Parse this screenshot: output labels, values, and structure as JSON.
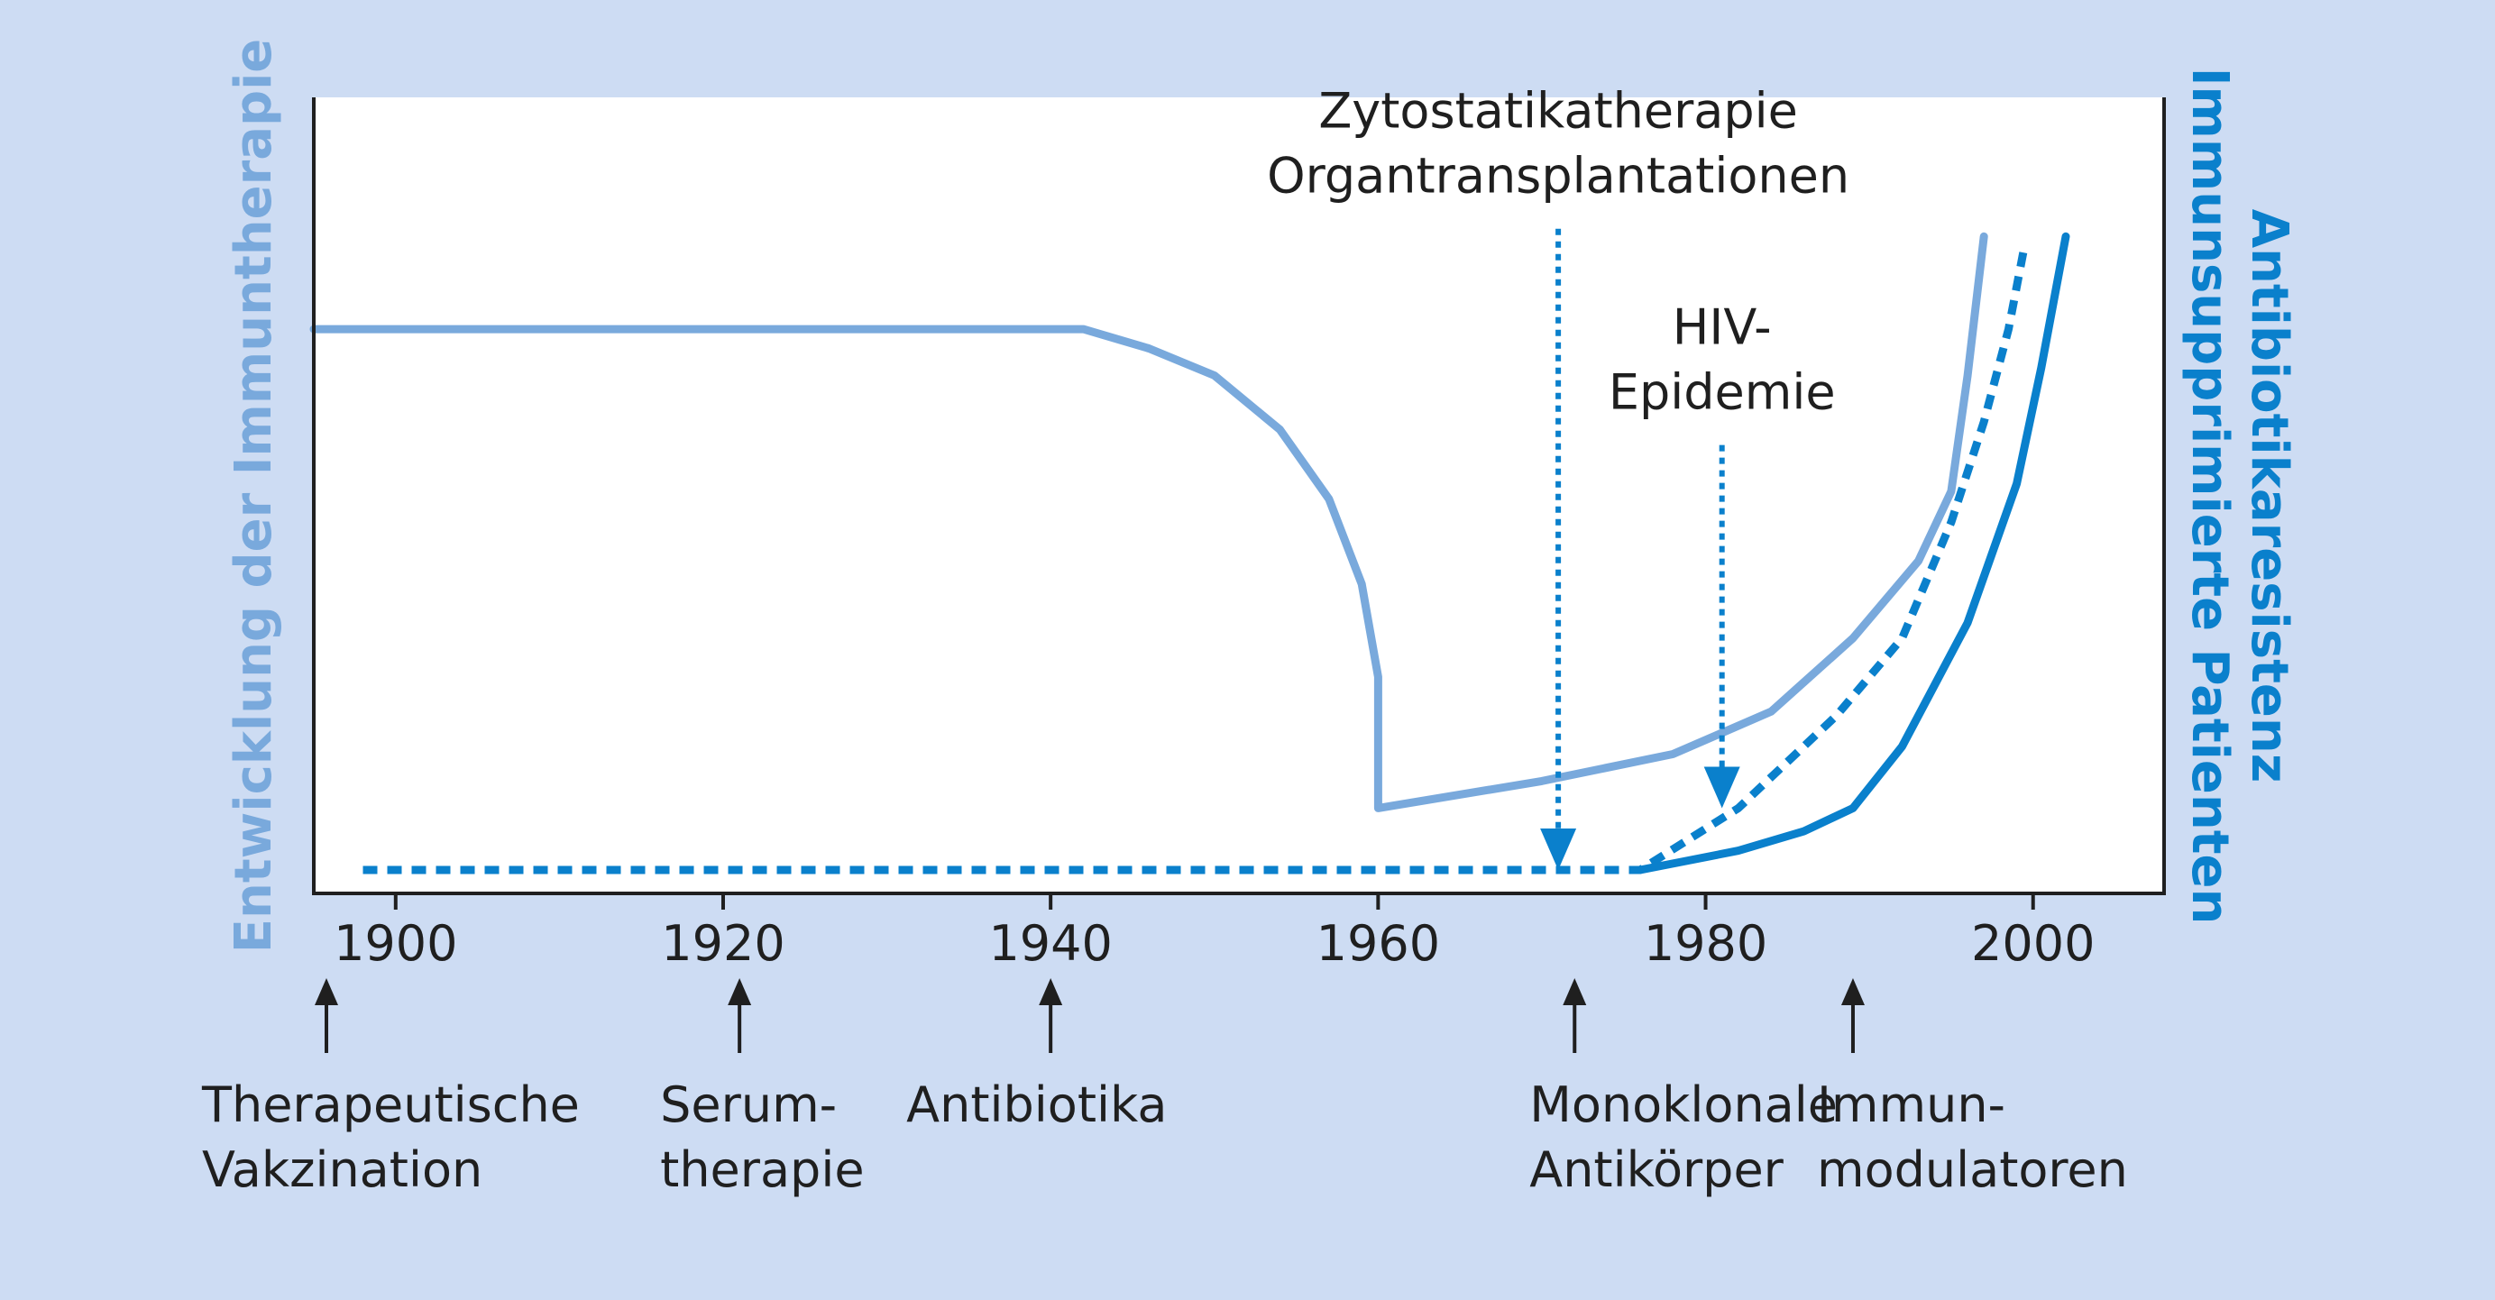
{
  "colors": {
    "background": "#cddcf3",
    "plot_background": "#ffffff",
    "immunotherapy": "#79a9dc",
    "resistance": "#0a80cc",
    "immunosuppressed": "#0a80cc",
    "axis": "#1f1f1f"
  },
  "chart_data": {
    "type": "line",
    "xlabel": "",
    "ylabel_left": "Entwicklung der Immuntherapie",
    "ylabel_right": [
      "Antibiotikaresistenz",
      "Immunsupprimierte Patienten"
    ],
    "xlim": [
      1895,
      2008
    ],
    "ylim": [
      0,
      100
    ],
    "x_ticks": [
      1900,
      1920,
      1940,
      1960,
      1980,
      2000
    ],
    "grid": false,
    "series": [
      {
        "key": "immunotherapy",
        "style": "solid",
        "color": "#79a9dc",
        "x": [
          1895,
          1942,
          1946,
          1950,
          1954,
          1957,
          1959,
          1960,
          1960,
          1970,
          1978,
          1984,
          1989,
          1993,
          1995,
          1996,
          1997
        ],
        "y": [
          70,
          70,
          67.5,
          64,
          57,
          48,
          37,
          25,
          8,
          11.5,
          15,
          20.5,
          30,
          40,
          49,
          64,
          82
        ]
      },
      {
        "key": "resistance",
        "style": "dotted",
        "color": "#0a80cc",
        "x": [
          1898,
          1976,
          1982,
          1988,
          1992,
          1995,
          1997,
          1998.5,
          1999.5
        ],
        "y": [
          0,
          0,
          8,
          20,
          30,
          45,
          58,
          70,
          81
        ]
      },
      {
        "key": "immunosuppressed",
        "style": "solid",
        "color": "#0a80cc",
        "x": [
          1976,
          1982,
          1986,
          1989,
          1992,
          1996,
          1999,
          2000.5,
          2002
        ],
        "y": [
          0,
          2.5,
          5,
          8,
          16,
          32,
          50,
          65,
          82
        ]
      }
    ],
    "annotations": [
      {
        "x": 1971,
        "y_from": 83,
        "y_to": 0,
        "lines": [
          "Zytostatikatherapie",
          "Organtransplantationen"
        ]
      },
      {
        "x": 1981,
        "y_from": 55,
        "y_to": 8,
        "lines": [
          "HIV-",
          "Epidemie"
        ]
      }
    ],
    "milestones": [
      {
        "x": 1895,
        "lines": [
          "Therapeutische",
          "Vakzination"
        ]
      },
      {
        "x": 1921,
        "lines": [
          "Serum-",
          "therapie"
        ]
      },
      {
        "x": 1940,
        "lines": [
          "Antibiotika"
        ]
      },
      {
        "x": 1972,
        "lines": [
          "Monoklonale",
          "Antikörper"
        ]
      },
      {
        "x": 1989,
        "lines": [
          "Immun-",
          "modulatoren"
        ]
      }
    ]
  }
}
